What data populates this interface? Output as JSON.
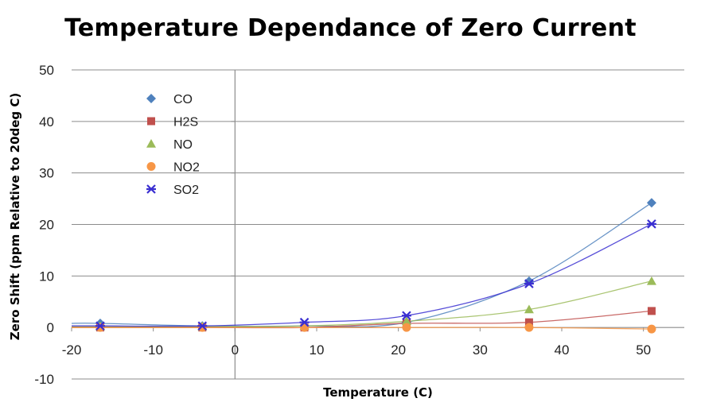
{
  "chart_data": {
    "type": "scatter",
    "title": "Temperature Dependance of Zero Current",
    "xlabel": "Temperature (C)",
    "ylabel": "Zero Shift (ppm Relative to 20deg C)",
    "xlim": [
      -20,
      55
    ],
    "ylim": [
      -10,
      50
    ],
    "xticks": [
      -20,
      -10,
      0,
      10,
      20,
      30,
      40,
      50
    ],
    "yticks": [
      -10,
      0,
      10,
      20,
      30,
      40,
      50
    ],
    "grid": "horizontal",
    "legend_position": "top-left",
    "series": [
      {
        "name": "CO",
        "color": "#4f81bd",
        "marker": "diamond",
        "x": [
          -16.5,
          -4,
          8.5,
          21,
          36,
          51
        ],
        "y": [
          0.8,
          0.3,
          0.3,
          1.0,
          9.0,
          24.2
        ]
      },
      {
        "name": "H2S",
        "color": "#c0504d",
        "marker": "square",
        "x": [
          -16.5,
          -4,
          8.5,
          21,
          36,
          51
        ],
        "y": [
          0.0,
          0.0,
          0.0,
          0.8,
          1.0,
          3.2
        ]
      },
      {
        "name": "NO",
        "color": "#9bbb59",
        "marker": "triangle",
        "x": [
          -16.5,
          -4,
          8.5,
          21,
          36,
          51
        ],
        "y": [
          0.2,
          0.2,
          0.3,
          1.2,
          3.5,
          9.0
        ]
      },
      {
        "name": "NO2",
        "color": "#f79646",
        "marker": "circle",
        "x": [
          -16.5,
          -4,
          8.5,
          21,
          36,
          51
        ],
        "y": [
          0.0,
          0.0,
          0.0,
          0.0,
          0.0,
          -0.3
        ]
      },
      {
        "name": "SO2",
        "color": "#3a2fd1",
        "marker": "star",
        "x": [
          -16.5,
          -4,
          8.5,
          21,
          36,
          51
        ],
        "y": [
          0.3,
          0.3,
          1.0,
          2.3,
          8.5,
          20.1
        ]
      }
    ]
  }
}
